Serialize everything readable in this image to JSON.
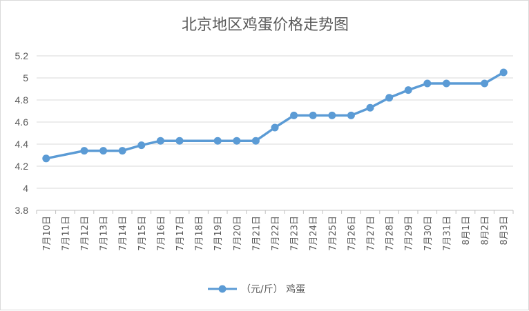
{
  "chart_data": {
    "type": "line",
    "title": "北京地区鸡蛋价格走势图",
    "categories": [
      "7月10日",
      "7月11日",
      "7月12日",
      "7月13日",
      "7月14日",
      "7月15日",
      "7月16日",
      "7月17日",
      "7月18日",
      "7月19日",
      "7月20日",
      "7月21日",
      "7月22日",
      "7月23日",
      "7月24日",
      "7月25日",
      "7月26日",
      "7月27日",
      "7月28日",
      "7月29日",
      "7月30日",
      "7月31日",
      "8月1日",
      "8月2日",
      "8月3日"
    ],
    "series": [
      {
        "name": "（元/斤） 鸡蛋",
        "color": "#5b9bd5",
        "values": [
          4.27,
          null,
          4.34,
          4.34,
          4.34,
          4.39,
          4.43,
          4.43,
          null,
          4.43,
          4.43,
          4.43,
          4.55,
          4.66,
          4.66,
          4.66,
          4.66,
          4.73,
          4.82,
          4.89,
          4.95,
          4.95,
          null,
          4.95,
          5.05
        ]
      }
    ],
    "ylim": [
      3.8,
      5.2
    ],
    "yticks": [
      "5.2",
      "5",
      "4.8",
      "4.6",
      "4.4",
      "4.2",
      "4",
      "3.8"
    ],
    "ytick_values": [
      5.2,
      5.0,
      4.8,
      4.6,
      4.4,
      4.2,
      4.0,
      3.8
    ],
    "grid": true,
    "legend_position": "bottom",
    "xlabel": "",
    "ylabel": ""
  }
}
